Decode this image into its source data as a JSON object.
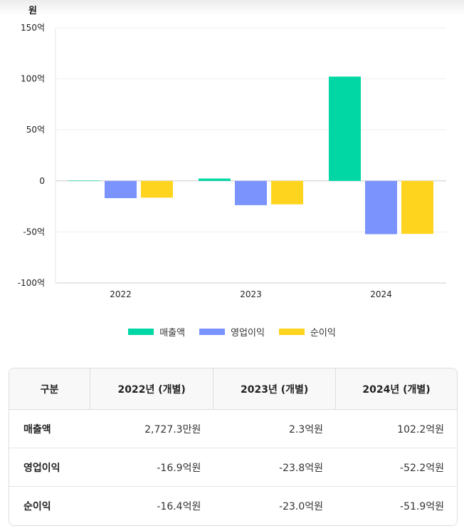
{
  "chart_data": {
    "type": "bar",
    "unit_label": "원",
    "categories": [
      "2022",
      "2023",
      "2024"
    ],
    "series": [
      {
        "name": "매출액",
        "color": "#00d7a4",
        "values": [
          0.27,
          2.3,
          102.2
        ]
      },
      {
        "name": "영업이익",
        "color": "#7b93fc",
        "values": [
          -16.9,
          -23.8,
          -52.2
        ]
      },
      {
        "name": "순이익",
        "color": "#ffd41f",
        "values": [
          -16.4,
          -23.0,
          -51.9
        ]
      }
    ],
    "ylim": [
      -100,
      150
    ],
    "yticks": [
      {
        "v": 150,
        "label": "150억"
      },
      {
        "v": 100,
        "label": "100억"
      },
      {
        "v": 50,
        "label": "50억"
      },
      {
        "v": 0,
        "label": "0"
      },
      {
        "v": -50,
        "label": "-50억"
      },
      {
        "v": -100,
        "label": "-100억"
      }
    ],
    "grid": true,
    "legend": "bottom"
  },
  "table": {
    "headers": [
      "구분",
      "2022년 (개별)",
      "2023년 (개별)",
      "2024년 (개별)"
    ],
    "rows": [
      {
        "label": "매출액",
        "values": [
          "2,727.3만원",
          "2.3억원",
          "102.2억원"
        ]
      },
      {
        "label": "영업이익",
        "values": [
          "-16.9억원",
          "-23.8억원",
          "-52.2억원"
        ]
      },
      {
        "label": "순이익",
        "values": [
          "-16.4억원",
          "-23.0억원",
          "-51.9억원"
        ]
      }
    ]
  }
}
